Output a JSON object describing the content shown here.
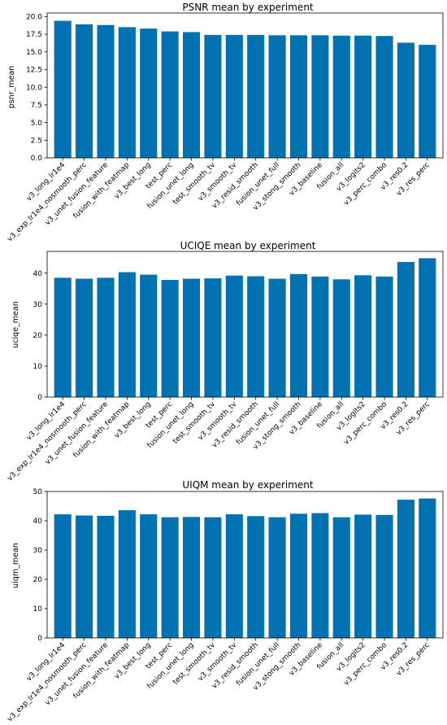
{
  "chart_data": [
    {
      "type": "bar",
      "title": "PSNR mean by experiment",
      "xlabel": "",
      "ylabel": "psnr_mean",
      "ylim": [
        0,
        20.5
      ],
      "yticks": [
        "0.0",
        "2.5",
        "5.0",
        "7.5",
        "10.0",
        "12.5",
        "15.0",
        "17.5",
        "20.0"
      ],
      "ytick_values": [
        0,
        2.5,
        5,
        7.5,
        10,
        12.5,
        15,
        17.5,
        20
      ],
      "categories": [
        "v3_long_lr1e4",
        "v3_exp_lr1e4_nosmooth_perc",
        "v3_unet_fusion_feature",
        "fusion_with_featmap",
        "v3_best_long",
        "test_perc",
        "fusion_unet_long",
        "test_smooth_tv",
        "v3_smooth_tv",
        "v3_resid_smooth",
        "fusion_unet_full",
        "v3_stong_smooth",
        "v3_baseline",
        "fusion_all",
        "v3_logits2",
        "v3_perc_combo",
        "v3_res0.2",
        "v3_res_perc"
      ],
      "values": [
        19.4,
        18.9,
        18.8,
        18.5,
        18.3,
        17.9,
        17.8,
        17.4,
        17.4,
        17.4,
        17.35,
        17.35,
        17.35,
        17.3,
        17.3,
        17.25,
        16.3,
        16.0
      ],
      "bar_color": "#0072b2",
      "grid": false
    },
    {
      "type": "bar",
      "title": "UCIQE mean by experiment",
      "xlabel": "",
      "ylabel": "uciqe_mean",
      "ylim": [
        0,
        47
      ],
      "yticks": [
        "0",
        "10",
        "20",
        "30",
        "40"
      ],
      "ytick_values": [
        0,
        10,
        20,
        30,
        40
      ],
      "categories": [
        "v3_long_lr1e4",
        "v3_exp_lr1e4_nosmooth_perc",
        "v3_unet_fusion_feature",
        "fusion_with_featmap",
        "v3_best_long",
        "test_perc",
        "fusion_unet_long",
        "test_smooth_tv",
        "v3_smooth_tv",
        "v3_resid_smooth",
        "fusion_unet_full",
        "v3_stong_smooth",
        "v3_baseline",
        "fusion_all",
        "v3_logits2",
        "v3_perc_combo",
        "v3_res0.2",
        "v3_res_perc"
      ],
      "values": [
        38.5,
        38.2,
        38.5,
        40.3,
        39.5,
        37.8,
        38.2,
        38.3,
        39.2,
        39.0,
        38.2,
        39.7,
        38.9,
        38.0,
        39.3,
        38.9,
        43.6,
        44.8
      ],
      "bar_color": "#0072b2",
      "grid": false
    },
    {
      "type": "bar",
      "title": "UIQM mean by experiment",
      "xlabel": "",
      "ylabel": "uiqm_mean",
      "ylim": [
        0,
        50
      ],
      "yticks": [
        "0",
        "10",
        "20",
        "30",
        "40",
        "50"
      ],
      "ytick_values": [
        0,
        10,
        20,
        30,
        40,
        50
      ],
      "categories": [
        "v3_long_lr1e4",
        "v3_exp_lr1e4_nosmooth_perc",
        "v3_unet_fusion_feature",
        "fusion_with_featmap",
        "v3_best_long",
        "test_perc",
        "fusion_unet_long",
        "test_smooth_tv",
        "v3_smooth_tv",
        "v3_resid_smooth",
        "fusion_unet_full",
        "v3_stong_smooth",
        "v3_baseline",
        "fusion_all",
        "v3_logits2",
        "v3_perc_combo",
        "v3_res0.2",
        "v3_res_perc"
      ],
      "values": [
        42.2,
        41.8,
        41.7,
        43.6,
        42.2,
        41.2,
        41.3,
        41.2,
        42.2,
        41.6,
        41.2,
        42.4,
        42.6,
        41.2,
        42.1,
        42.0,
        47.2,
        47.6
      ],
      "bar_color": "#0072b2",
      "grid": false
    }
  ]
}
